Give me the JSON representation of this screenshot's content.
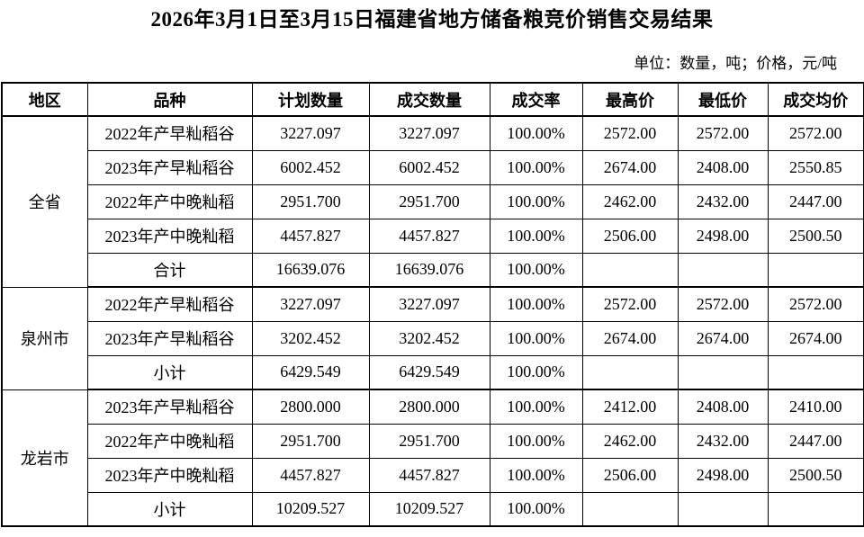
{
  "page": {
    "title": "2026年3月1日至3月15日福建省地方储备粮竞价销售交易结果",
    "unit_note": "单位：数量，吨；价格，元/吨"
  },
  "colors": {
    "text": "#000000",
    "border": "#000000",
    "background": "#ffffff"
  },
  "table": {
    "columns": [
      "地区",
      "品种",
      "计划数量",
      "成交数量",
      "成交率",
      "最高价",
      "最低价",
      "成交均价"
    ],
    "regions": [
      {
        "name": "全省",
        "rows": [
          [
            "2022年产早籼稻谷",
            "3227.097",
            "3227.097",
            "100.00%",
            "2572.00",
            "2572.00",
            "2572.00"
          ],
          [
            "2023年产早籼稻谷",
            "6002.452",
            "6002.452",
            "100.00%",
            "2674.00",
            "2408.00",
            "2550.85"
          ],
          [
            "2022年产中晚籼稻",
            "2951.700",
            "2951.700",
            "100.00%",
            "2462.00",
            "2432.00",
            "2447.00"
          ],
          [
            "2023年产中晚籼稻",
            "4457.827",
            "4457.827",
            "100.00%",
            "2506.00",
            "2498.00",
            "2500.50"
          ],
          [
            "合计",
            "16639.076",
            "16639.076",
            "100.00%",
            "",
            "",
            ""
          ]
        ]
      },
      {
        "name": "泉州市",
        "rows": [
          [
            "2022年产早籼稻谷",
            "3227.097",
            "3227.097",
            "100.00%",
            "2572.00",
            "2572.00",
            "2572.00"
          ],
          [
            "2023年产早籼稻谷",
            "3202.452",
            "3202.452",
            "100.00%",
            "2674.00",
            "2674.00",
            "2674.00"
          ],
          [
            "小计",
            "6429.549",
            "6429.549",
            "100.00%",
            "",
            "",
            ""
          ]
        ]
      },
      {
        "name": "龙岩市",
        "rows": [
          [
            "2023年产早籼稻谷",
            "2800.000",
            "2800.000",
            "100.00%",
            "2412.00",
            "2408.00",
            "2410.00"
          ],
          [
            "2022年产中晚籼稻",
            "2951.700",
            "2951.700",
            "100.00%",
            "2462.00",
            "2432.00",
            "2447.00"
          ],
          [
            "2023年产中晚籼稻",
            "4457.827",
            "4457.827",
            "100.00%",
            "2506.00",
            "2498.00",
            "2500.50"
          ],
          [
            "小计",
            "10209.527",
            "10209.527",
            "100.00%",
            "",
            "",
            ""
          ]
        ]
      }
    ]
  }
}
